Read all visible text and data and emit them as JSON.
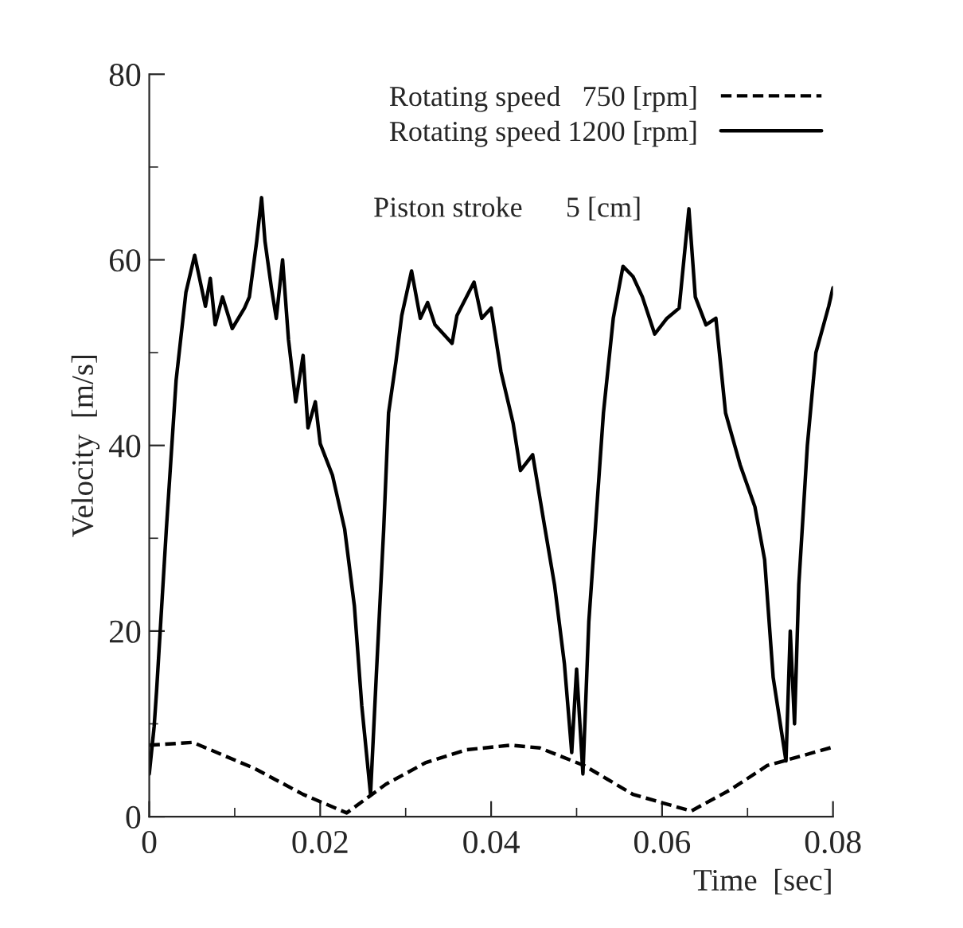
{
  "chart_data": {
    "type": "line",
    "xlabel": "Time  [sec]",
    "ylabel": "Velocity  [m/s]",
    "xlim": [
      0,
      0.08
    ],
    "xticks": [
      {
        "value": 0,
        "label": "0"
      },
      0.02,
      0.04,
      0.06,
      0.08
    ],
    "ylim": [
      0,
      80
    ],
    "yticks": [
      0,
      20,
      40,
      60,
      80
    ],
    "grid": false,
    "legend": "top right",
    "marker": "none",
    "annotations": [
      "Piston stroke      5 [cm]"
    ],
    "series": [
      {
        "name": "Rotating speed   750 [rpm]",
        "color": "#000000",
        "line_style": "dashed",
        "x": [
          0,
          0.0051,
          0.0123,
          0.018,
          0.0231,
          0.0277,
          0.0323,
          0.0371,
          0.0423,
          0.0457,
          0.0509,
          0.0566,
          0.0634,
          0.068,
          0.0723,
          0.08
        ],
        "values": [
          7.7,
          8,
          5.2,
          2.4,
          0.4,
          3.5,
          5.8,
          7.2,
          7.7,
          7.4,
          5.5,
          2.4,
          0.6,
          2.9,
          5.5,
          7.5
        ]
      },
      {
        "name": "Rotating speed 1200 [rpm]",
        "color": "#000000",
        "line_style": "solid",
        "x": [
          0,
          0.00057,
          0.00086,
          0.002,
          0.00314,
          0.00429,
          0.00531,
          0.00657,
          0.00714,
          0.00771,
          0.00857,
          0.00971,
          0.01114,
          0.01171,
          0.01257,
          0.01314,
          0.01354,
          0.01429,
          0.01486,
          0.0156,
          0.01629,
          0.01714,
          0.018,
          0.01857,
          0.01943,
          0.02,
          0.02143,
          0.02286,
          0.024,
          0.02486,
          0.02589,
          0.02657,
          0.02743,
          0.028,
          0.02886,
          0.02954,
          0.03069,
          0.03171,
          0.03257,
          0.03343,
          0.03543,
          0.036,
          0.038,
          0.0389,
          0.04,
          0.04114,
          0.04257,
          0.04343,
          0.04486,
          0.04629,
          0.04743,
          0.04857,
          0.04943,
          0.05,
          0.05074,
          0.05143,
          0.05229,
          0.05314,
          0.05429,
          0.05543,
          0.0566,
          0.0577,
          0.05914,
          0.06057,
          0.062,
          0.06314,
          0.06389,
          0.06514,
          0.0663,
          0.06743,
          0.06914,
          0.07086,
          0.072,
          0.073,
          0.0745,
          0.075,
          0.0755,
          0.076,
          0.077,
          0.078,
          0.0795,
          0.08
        ],
        "values": [
          4.6,
          9.7,
          13.6,
          31,
          47,
          56.5,
          60.5,
          55,
          58,
          53,
          56,
          52.6,
          54.8,
          56,
          62,
          66.7,
          62,
          57,
          53.7,
          60,
          51.4,
          44.7,
          49.7,
          41.9,
          44.7,
          40.2,
          36.8,
          31,
          22.7,
          12,
          2.4,
          15.3,
          31,
          43.5,
          49,
          54,
          58.8,
          53.7,
          55.4,
          53,
          51,
          54,
          57.6,
          53.7,
          54.8,
          48,
          42.4,
          37.3,
          39,
          31.1,
          24.9,
          16.5,
          6.9,
          15.9,
          4.6,
          21,
          32.3,
          43.5,
          53.7,
          59.3,
          58.2,
          56,
          52,
          53.7,
          54.8,
          65.5,
          56,
          53,
          53.7,
          43.5,
          37.9,
          33.4,
          27.7,
          15,
          6,
          20,
          10,
          25,
          40,
          50,
          55,
          57
        ]
      }
    ]
  }
}
